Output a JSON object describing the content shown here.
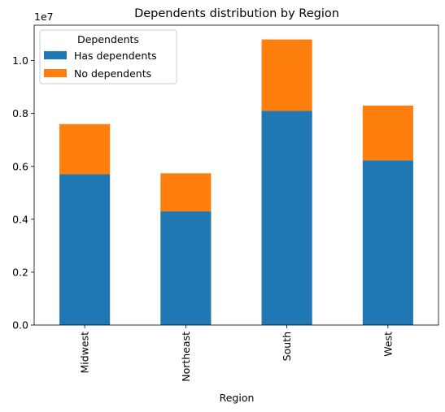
{
  "chart_data": {
    "type": "bar",
    "stacked": true,
    "title": "Dependents distribution by Region",
    "xlabel": "Region",
    "ylabel": "",
    "y_offset_label": "1e7",
    "categories": [
      "Midwest",
      "Northeast",
      "South",
      "West"
    ],
    "series": [
      {
        "name": "Has dependents",
        "color": "#1f77b4",
        "values": [
          5700000,
          4300000,
          8100000,
          6230000
        ]
      },
      {
        "name": "No dependents",
        "color": "#ff7f0e",
        "values": [
          1900000,
          1440000,
          2700000,
          2070000
        ]
      }
    ],
    "ylim": [
      0,
      11340000
    ],
    "yticks": [
      0,
      2000000,
      4000000,
      6000000,
      8000000,
      10000000
    ],
    "ytick_labels": [
      "0.0",
      "0.2",
      "0.4",
      "0.6",
      "0.8",
      "1.0"
    ],
    "legend": {
      "title": "Dependents",
      "placement": "upper-left"
    },
    "grid": false
  }
}
